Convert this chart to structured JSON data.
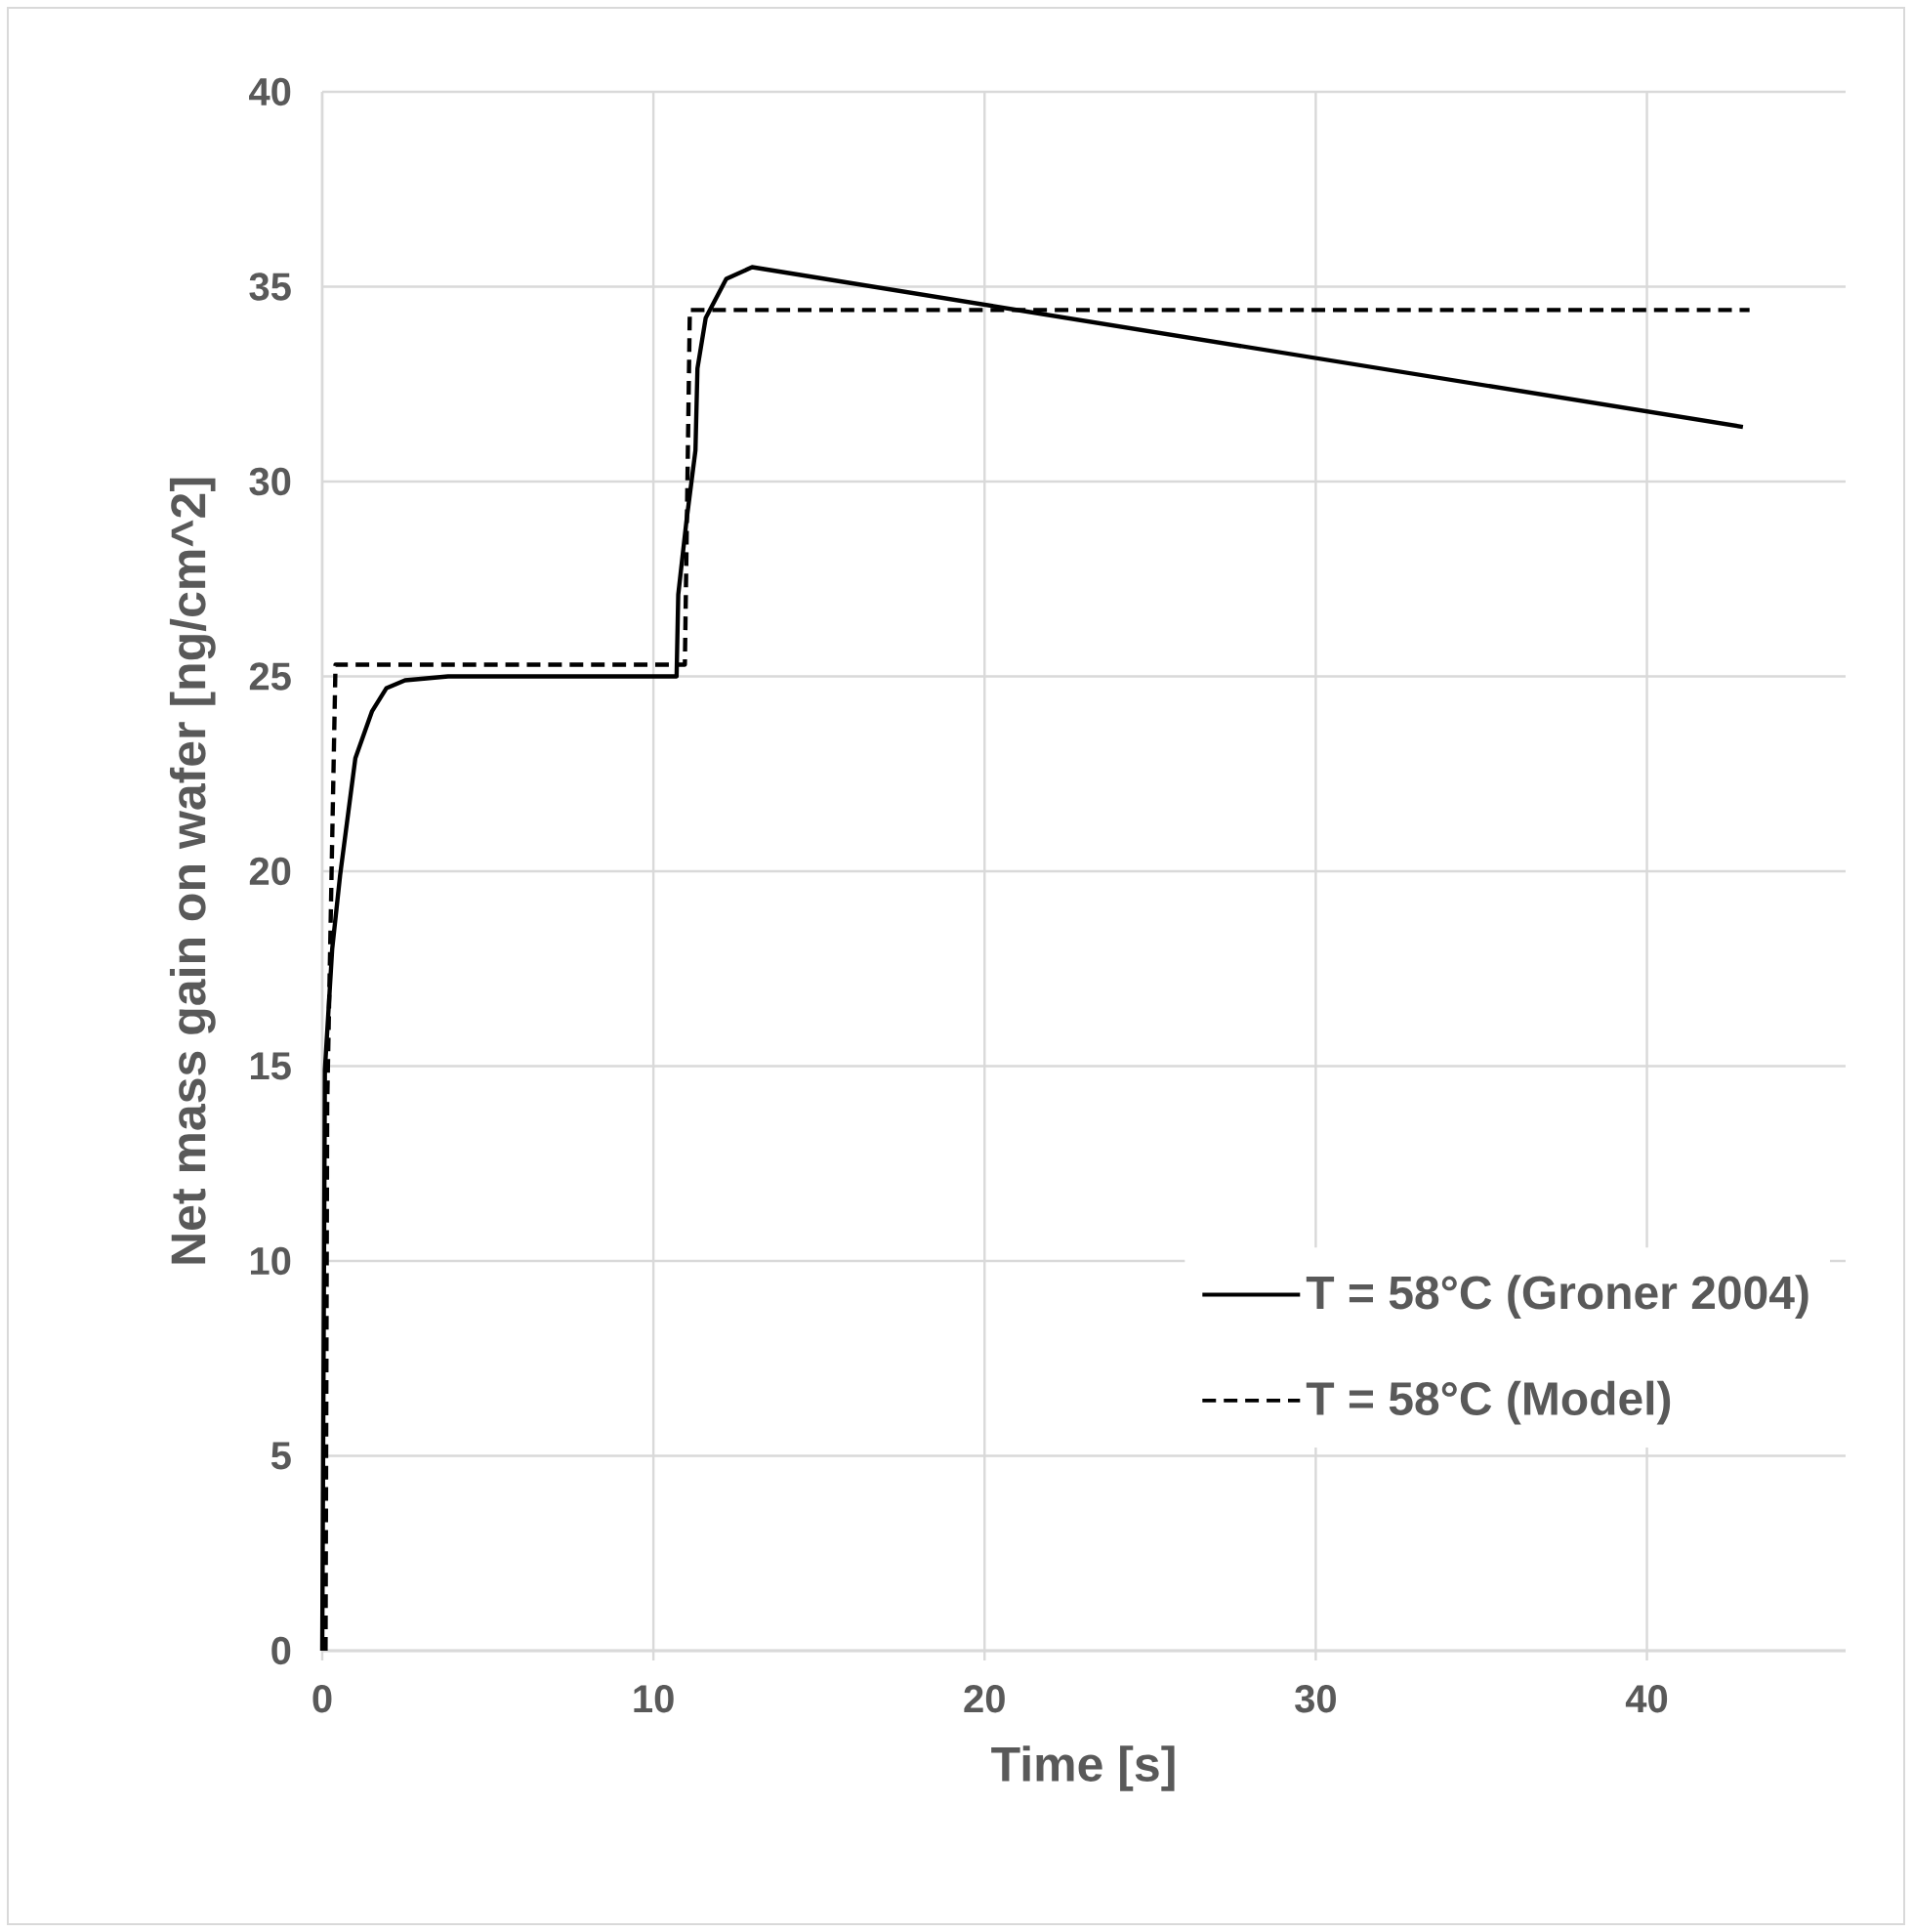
{
  "chart_data": {
    "type": "line",
    "xlabel": "Time [s]",
    "ylabel": "Net mass gain on wafer [ng/cm^2]",
    "xlim": [
      0,
      46
    ],
    "ylim": [
      0,
      40
    ],
    "xticks": [
      0,
      10,
      20,
      30,
      40
    ],
    "yticks": [
      0,
      5,
      10,
      15,
      20,
      25,
      30,
      35,
      40
    ],
    "grid": true,
    "legend": "bottom right",
    "marker": "none",
    "series": [
      {
        "name": "T = 58°C (Groner 2004)",
        "color": "#000000",
        "line_style": "solid",
        "x": [
          0,
          0.08,
          0.3,
          0.54,
          1.0,
          1.5,
          1.94,
          2.5,
          3.8,
          10.7,
          10.75,
          11.0,
          11.27,
          11.33,
          11.58,
          12.2,
          12.98,
          42.9
        ],
        "values": [
          0,
          14.9,
          18,
          19.9,
          22.9,
          24.1,
          24.7,
          24.9,
          25,
          25,
          27.1,
          29,
          30.8,
          32.9,
          34.2,
          35.2,
          35.5,
          31.4
        ]
      },
      {
        "name": "T = 58°C (Model)",
        "color": "#000000",
        "line_style": "dashed",
        "x": [
          0.1,
          0.15,
          0.4,
          10.95,
          11.1,
          43.1
        ],
        "values": [
          0,
          14,
          25.3,
          25.3,
          34.4,
          34.4
        ]
      }
    ]
  }
}
